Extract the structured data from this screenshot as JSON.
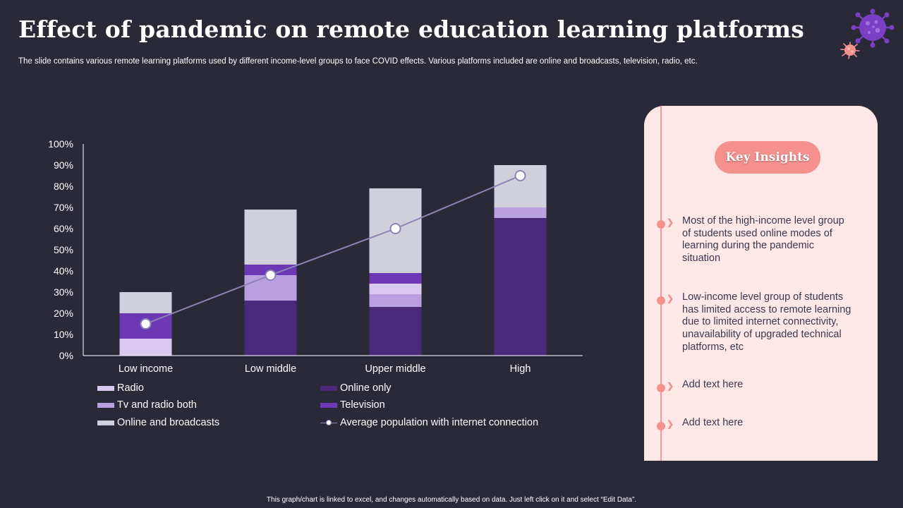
{
  "header": {
    "title": "Effect of pandemic on remote education learning platforms",
    "subtitle": "The slide contains various remote learning platforms used by different income-level groups to face COVID  effects. Various platforms included are online and broadcasts, television, radio, etc."
  },
  "footnote": "This graph/chart is linked to excel, and changes automatically based on data. Just left click on it and select “Edit Data”.",
  "chart_data": {
    "type": "bar",
    "stacked": true,
    "categories": [
      "Low income",
      "Low middle",
      "Upper middle",
      "High"
    ],
    "ylim": [
      0,
      100
    ],
    "yticks": [
      "0%",
      "10%",
      "20%",
      "30%",
      "40%",
      "50%",
      "60%",
      "70%",
      "80%",
      "90%",
      "100%"
    ],
    "grid": false,
    "legend_position": "bottom",
    "series": [
      {
        "name": "Online only",
        "color": "#4b2a7b",
        "values": [
          0,
          26,
          23,
          65
        ]
      },
      {
        "name": "Radio",
        "color": "#d9c9ef",
        "values": [
          8,
          0,
          0,
          0
        ]
      },
      {
        "name": "Tv and radio both",
        "color": "#b9a0e0",
        "values": [
          0,
          12,
          6,
          5
        ]
      },
      {
        "name": "Radio",
        "color": "#d9c9ef",
        "values": [
          0,
          0,
          5,
          0
        ]
      },
      {
        "name": "Television",
        "color": "#6d38b3",
        "values": [
          12,
          5,
          5,
          0
        ]
      },
      {
        "name": "Online and broadcasts",
        "color": "#d0cfdc",
        "values": [
          10,
          26,
          40,
          20
        ]
      }
    ],
    "line_series": {
      "name": "Average population with internet connection",
      "color": "#8b84b4",
      "values": [
        15,
        38,
        60,
        85
      ]
    }
  },
  "legend": {
    "items": [
      {
        "label": "Radio",
        "color": "#d9c9ef",
        "kind": "swatch"
      },
      {
        "label": "Online only",
        "color": "#4b2a7b",
        "kind": "swatch"
      },
      {
        "label": "Tv and radio both",
        "color": "#b9a0e0",
        "kind": "swatch"
      },
      {
        "label": "Television",
        "color": "#6d38b3",
        "kind": "swatch"
      },
      {
        "label": "Online and broadcasts",
        "color": "#d0cfdc",
        "kind": "swatch"
      },
      {
        "label": "Average population with internet connection",
        "color": "#8b84b4",
        "kind": "line"
      }
    ]
  },
  "insights": {
    "heading": "Key Insights",
    "items": [
      "Most of the high-income level group of students used online modes of learning during the pandemic situation",
      "Low-income level group of students has limited access to remote learning due to limited internet connectivity, unavailability of upgraded technical platforms, etc",
      "Add text here",
      "Add text here"
    ]
  },
  "colors": {
    "background": "#2a2938",
    "panel": "#fde8e7",
    "accent": "#f4918f",
    "virus": "#7a3fc4"
  },
  "icons": [
    "virus-icon",
    "virus-small-icon"
  ]
}
